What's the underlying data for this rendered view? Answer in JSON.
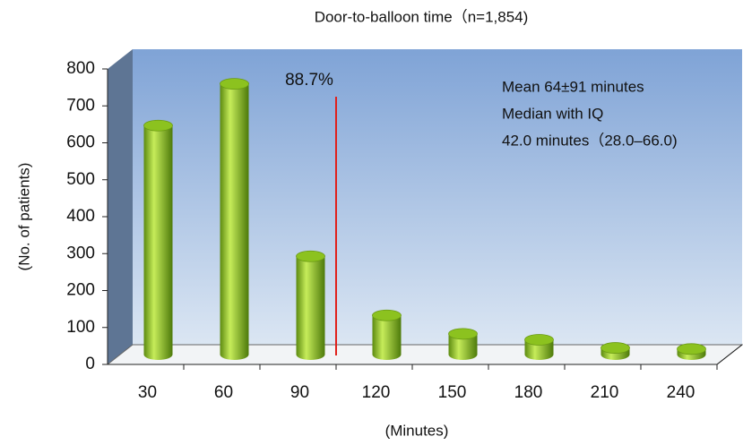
{
  "chart_data": {
    "type": "bar",
    "title": "Door-to-balloon time（n=1,854)",
    "x_label": "(Minutes)",
    "y_label": "(No. of patients)",
    "categories": [
      "30",
      "60",
      "90",
      "120",
      "150",
      "180",
      "210",
      "240"
    ],
    "values": [
      620,
      733,
      266,
      106,
      56,
      40,
      18,
      15
    ],
    "color": "#8cc21f",
    "ylim": [
      0,
      800
    ],
    "yticks": [
      0,
      100,
      200,
      300,
      400,
      500,
      600,
      700,
      800
    ],
    "percent_label": "88.7%",
    "annotations": [
      "Mean 64±91 minutes",
      "Median with IQ",
      "42.0 minutes（28.0–66.0)"
    ]
  }
}
